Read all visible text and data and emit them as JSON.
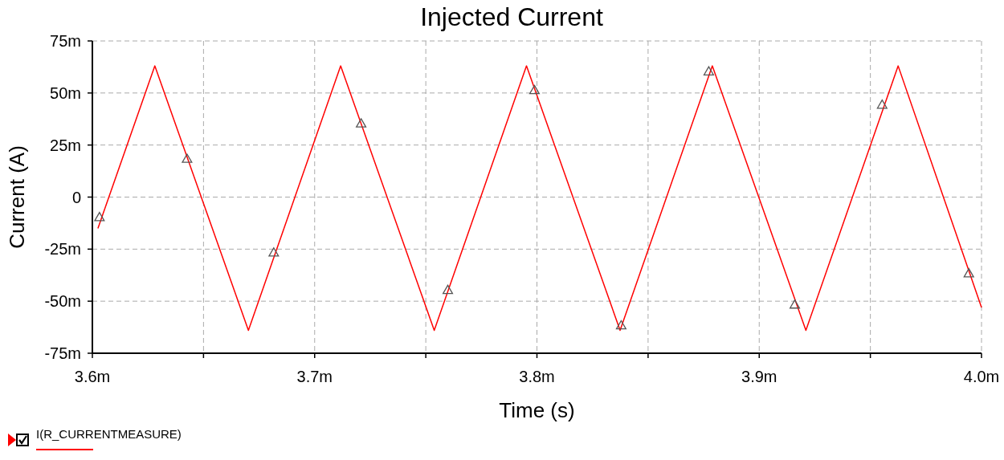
{
  "chart_data": {
    "type": "line",
    "title": "Injected Current",
    "xlabel": "Time (s)",
    "ylabel": "Current (A)",
    "xlim": [
      3.6,
      4.0
    ],
    "xticks": [
      {
        "value": 3.6,
        "label": "3.6m"
      },
      {
        "value": 3.65,
        "label": null
      },
      {
        "value": 3.7,
        "label": "3.7m"
      },
      {
        "value": 3.75,
        "label": null
      },
      {
        "value": 3.8,
        "label": "3.8m"
      },
      {
        "value": 3.85,
        "label": null
      },
      {
        "value": 3.9,
        "label": "3.9m"
      },
      {
        "value": 3.95,
        "label": null
      },
      {
        "value": 4.0,
        "label": "4.0m"
      }
    ],
    "ylim": [
      -75,
      75
    ],
    "yticks": [
      {
        "value": -75,
        "label": "-75m"
      },
      {
        "value": -50,
        "label": "-50m"
      },
      {
        "value": -25,
        "label": "-25m"
      },
      0,
      {
        "value": 25,
        "label": "25m"
      },
      {
        "value": 50,
        "label": "50m"
      },
      {
        "value": 75,
        "label": "75m"
      }
    ],
    "grid": true,
    "legend": "bottom left",
    "series": [
      {
        "name": "I(R_CURRENTMEASURE)",
        "type": "line",
        "color": "#ff0000",
        "marker": "none",
        "line_style": "solid",
        "x": [
          3.6025,
          3.6281,
          3.6702,
          3.7117,
          3.7538,
          3.7953,
          3.8374,
          3.8789,
          3.921,
          3.9625,
          4.0
        ],
        "values": [
          -15,
          63,
          -64,
          63,
          -64,
          63,
          -64,
          63,
          -64,
          63,
          -53
        ]
      },
      {
        "type": "scatter",
        "color": "#555555",
        "marker": "triangle",
        "x": [
          3.6032,
          3.6426,
          3.6816,
          3.7209,
          3.7599,
          3.7989,
          3.8379,
          3.8773,
          3.916,
          3.9553,
          3.9943
        ],
        "values": [
          -10,
          18,
          -27,
          35,
          -45,
          51,
          -62,
          60,
          -52,
          44,
          -37
        ]
      }
    ]
  }
}
